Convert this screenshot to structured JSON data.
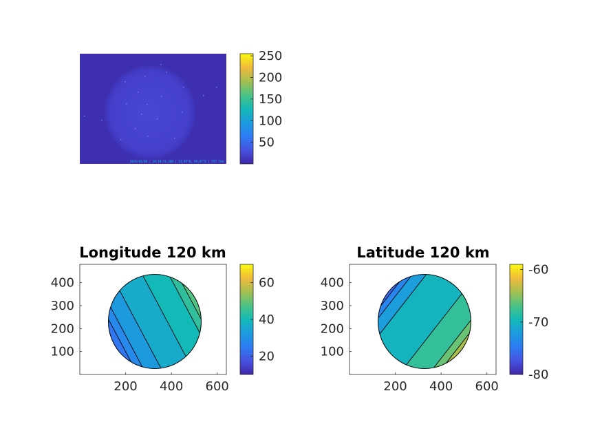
{
  "panels": [
    {
      "id": "camera-image",
      "type": "heatmap",
      "title": "",
      "xlabel": "",
      "ylabel": "",
      "axes_visible": false,
      "image_caption": "2019/01/08 | 10:10:31.200 | 51.85°N, 99.07°E | 557.7nm",
      "colorbar": {
        "range": [
          0,
          255
        ],
        "ticks": [
          50,
          100,
          150,
          200,
          250
        ],
        "colormap": "parula"
      }
    },
    {
      "id": "longitude-map",
      "type": "heatmap",
      "title": "Longitude 120 km",
      "xlabel": "",
      "ylabel": "",
      "xlim": [
        0,
        640
      ],
      "ylim": [
        0,
        480
      ],
      "xticks": [
        200,
        400,
        600
      ],
      "yticks": [
        100,
        200,
        300,
        400
      ],
      "colorbar": {
        "range": [
          10,
          70
        ],
        "ticks": [
          20,
          40,
          60
        ],
        "colormap": "parula"
      },
      "bands": [
        {
          "value": 24
        },
        {
          "value": 28
        },
        {
          "value": 32
        },
        {
          "value": 36
        },
        {
          "value": 40
        },
        {
          "value": 44
        },
        {
          "value": 48
        },
        {
          "value": 52
        }
      ]
    },
    {
      "id": "latitude-map",
      "type": "heatmap",
      "title": "Latitude 120 km",
      "xlabel": "",
      "ylabel": "",
      "xlim": [
        0,
        640
      ],
      "ylim": [
        0,
        480
      ],
      "xticks": [
        200,
        400,
        600
      ],
      "yticks": [
        100,
        200,
        300,
        400
      ],
      "colorbar": {
        "range": [
          -80,
          -59
        ],
        "ticks": [
          -80,
          -70,
          -60
        ],
        "colormap": "parula"
      },
      "bands": [
        {
          "value": -76
        },
        {
          "value": -74
        },
        {
          "value": -72
        },
        {
          "value": -70
        },
        {
          "value": -68
        },
        {
          "value": -66
        },
        {
          "value": -64
        }
      ]
    }
  ]
}
